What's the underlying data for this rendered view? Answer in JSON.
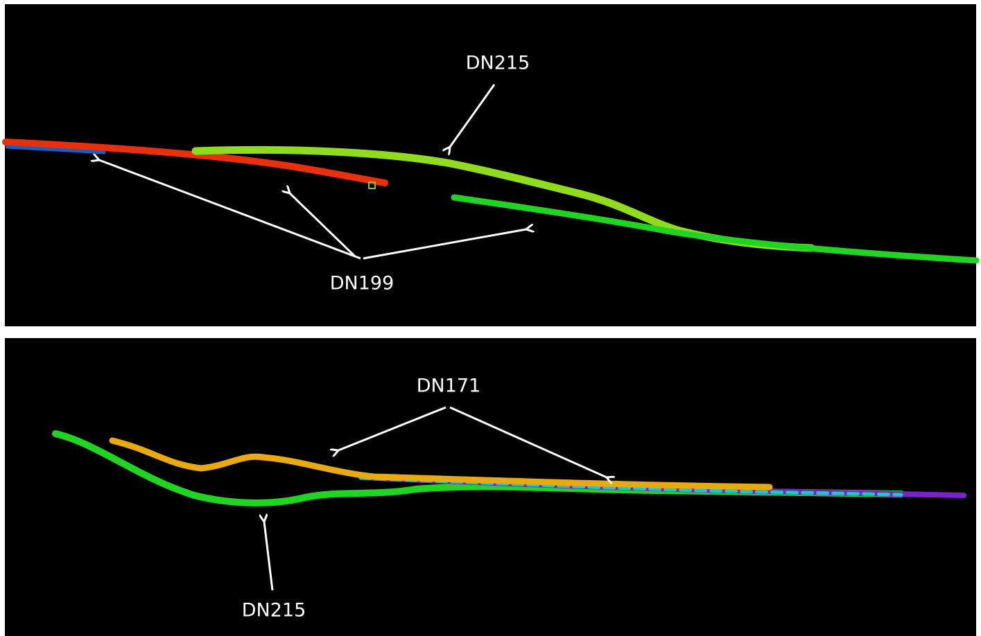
{
  "top_panel": {
    "labels": [
      "DN215",
      "DN199"
    ]
  },
  "bottom_panel": {
    "labels": [
      "DN171",
      "DN215"
    ]
  }
}
